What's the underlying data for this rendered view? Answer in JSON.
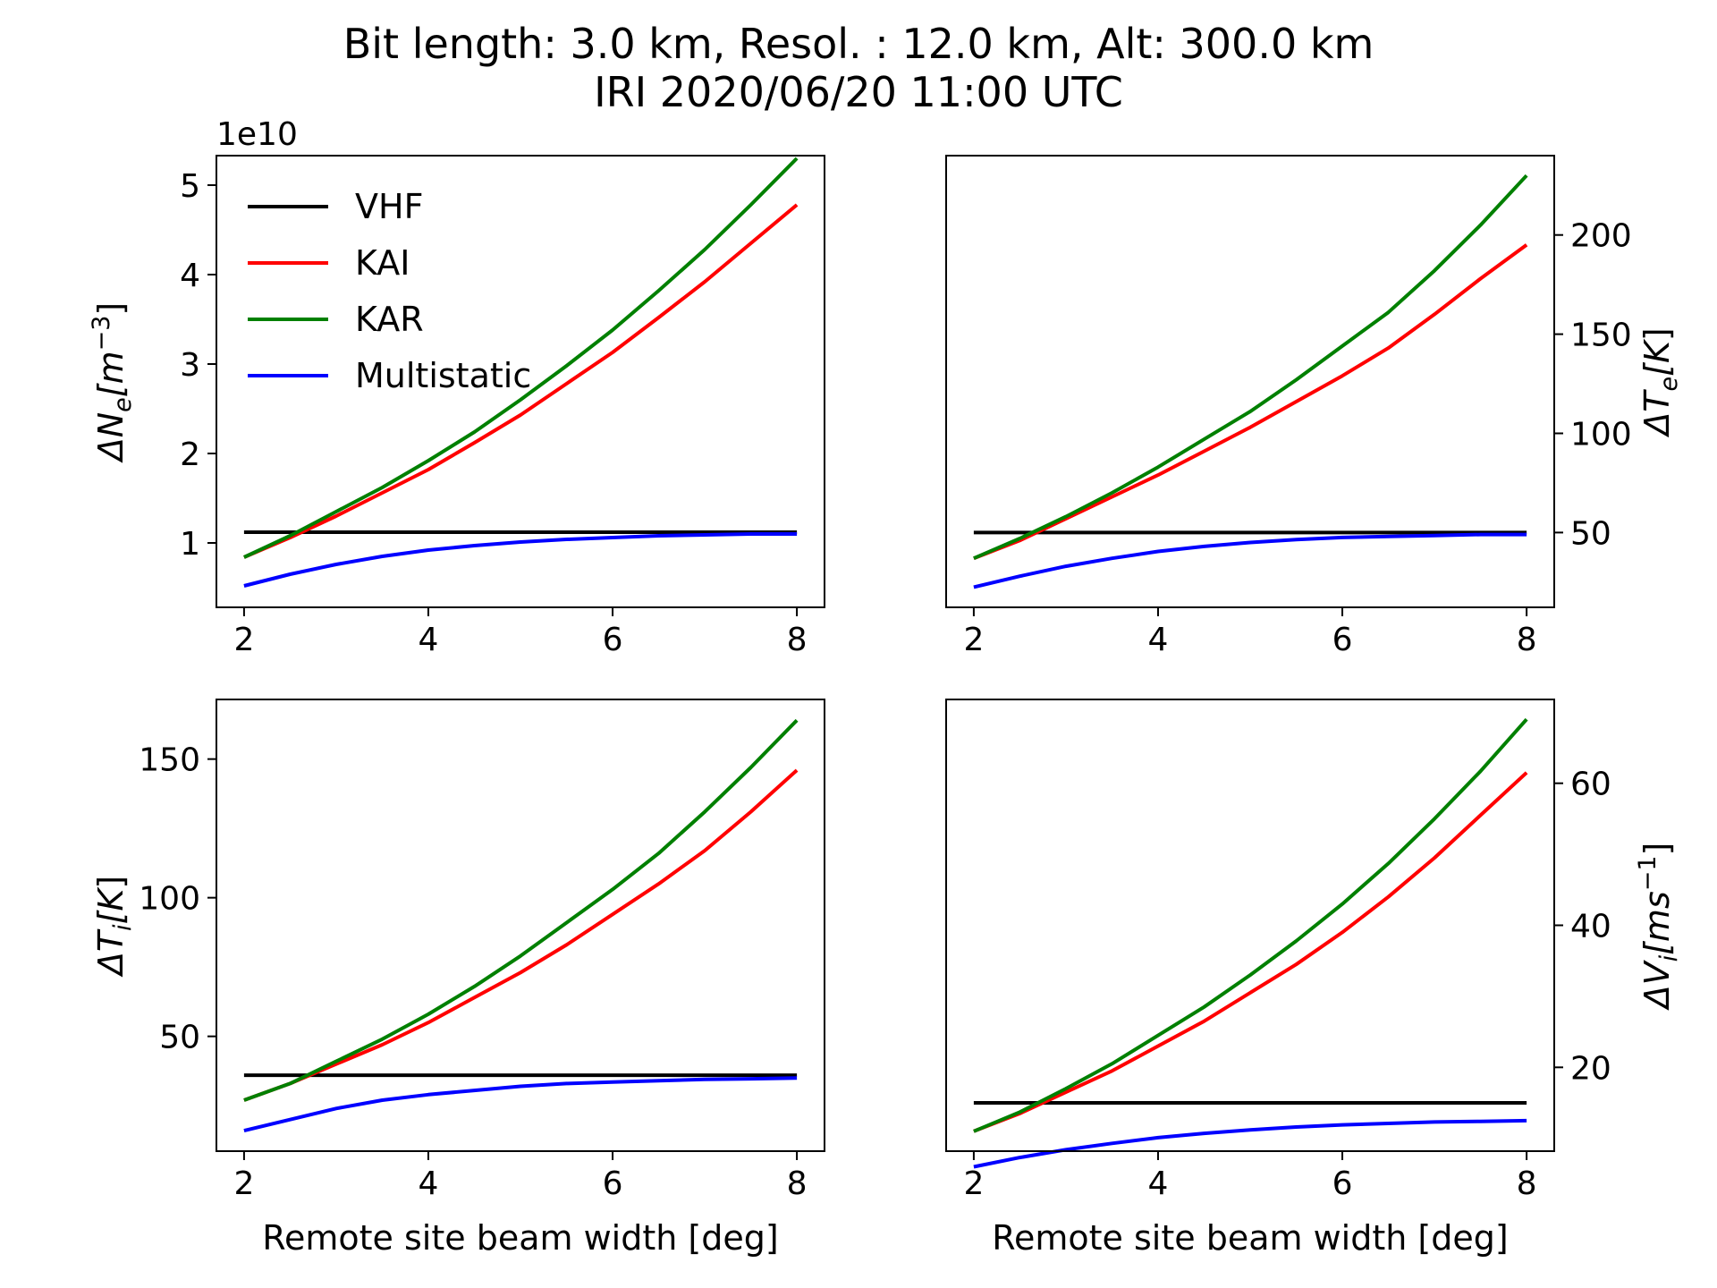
{
  "figure": {
    "title_line1": "Bit length: 3.0 km, Resol. : 12.0 km, Alt: 300.0 km",
    "title_line2": "IRI 2020/06/20 11:00 UTC"
  },
  "legend": {
    "placement": "upper-left of top-left panel",
    "entries": [
      {
        "label": "VHF",
        "color": "#000000"
      },
      {
        "label": "KAI",
        "color": "#ff0000"
      },
      {
        "label": "KAR",
        "color": "#008000"
      },
      {
        "label": "Multistatic",
        "color": "#0000ff"
      }
    ]
  },
  "chart_data": [
    {
      "type": "line",
      "panel": "top-left",
      "ylabel_base": "ΔN",
      "ylabel_sub": "e",
      "ylabel_unit_open": "[m",
      "ylabel_unit_sup": "−3",
      "ylabel_unit_close": "]",
      "y_offset_text": "1e10",
      "xlabel": "",
      "xlim": [
        1.7,
        8.3
      ],
      "ylim": [
        0.28,
        5.33
      ],
      "xticks": [
        "2",
        "4",
        "6",
        "8"
      ],
      "yticks": [
        "1",
        "2",
        "3",
        "4",
        "5"
      ],
      "yaxis_side": "left",
      "x": [
        2,
        2.5,
        3,
        3.5,
        4,
        4.5,
        5,
        5.5,
        6,
        6.5,
        7,
        7.5,
        8
      ],
      "series": [
        {
          "name": "VHF",
          "color": "#000000",
          "values": [
            1.12,
            1.12,
            1.12,
            1.12,
            1.12,
            1.12,
            1.12,
            1.12,
            1.12,
            1.12,
            1.12,
            1.12,
            1.12
          ]
        },
        {
          "name": "KAI",
          "color": "#ff0000",
          "values": [
            0.84,
            1.06,
            1.3,
            1.56,
            1.82,
            2.12,
            2.43,
            2.78,
            3.13,
            3.52,
            3.92,
            4.35,
            4.78
          ]
        },
        {
          "name": "KAR",
          "color": "#008000",
          "values": [
            0.84,
            1.08,
            1.35,
            1.62,
            1.92,
            2.24,
            2.6,
            2.98,
            3.38,
            3.82,
            4.28,
            4.78,
            5.3
          ]
        },
        {
          "name": "Multistatic",
          "color": "#0000ff",
          "values": [
            0.52,
            0.65,
            0.76,
            0.85,
            0.92,
            0.97,
            1.01,
            1.04,
            1.06,
            1.08,
            1.09,
            1.1,
            1.1
          ]
        }
      ]
    },
    {
      "type": "line",
      "panel": "top-right",
      "ylabel_base": "ΔT",
      "ylabel_sub": "e",
      "ylabel_unit_open": "[K",
      "ylabel_unit_sup": "",
      "ylabel_unit_close": "]",
      "y_offset_text": "",
      "xlabel": "",
      "xlim": [
        1.7,
        8.3
      ],
      "ylim": [
        12.3,
        240
      ],
      "xticks": [
        "2",
        "4",
        "6",
        "8"
      ],
      "yticks": [
        "50",
        "100",
        "150",
        "200"
      ],
      "yaxis_side": "right",
      "x": [
        2,
        2.5,
        3,
        3.5,
        4,
        4.5,
        5,
        5.5,
        6,
        6.5,
        7,
        7.5,
        8
      ],
      "series": [
        {
          "name": "VHF",
          "color": "#000000",
          "values": [
            50,
            50,
            50,
            50,
            50,
            50,
            50,
            50,
            50,
            50,
            50,
            50,
            50
          ]
        },
        {
          "name": "KAI",
          "color": "#ff0000",
          "values": [
            37,
            46,
            57,
            68,
            79,
            91,
            103,
            116,
            129,
            143,
            160,
            178,
            195
          ]
        },
        {
          "name": "KAR",
          "color": "#008000",
          "values": [
            37,
            47,
            58,
            70,
            83,
            97,
            111,
            127,
            144,
            161,
            182,
            205,
            230
          ]
        },
        {
          "name": "Multistatic",
          "color": "#0000ff",
          "values": [
            22.5,
            28,
            33,
            37,
            40.5,
            43,
            45,
            46.5,
            47.5,
            48,
            48.5,
            49,
            49
          ]
        }
      ]
    },
    {
      "type": "line",
      "panel": "bottom-left",
      "ylabel_base": "ΔT",
      "ylabel_sub": "i",
      "ylabel_unit_open": "[K",
      "ylabel_unit_sup": "",
      "ylabel_unit_close": "]",
      "y_offset_text": "",
      "xlabel": "Remote site beam width [deg]",
      "xlim": [
        1.7,
        8.3
      ],
      "ylim": [
        8.6,
        171.5
      ],
      "xticks": [
        "2",
        "4",
        "6",
        "8"
      ],
      "yticks": [
        "50",
        "100",
        "150"
      ],
      "yaxis_side": "left",
      "x": [
        2,
        2.5,
        3,
        3.5,
        4,
        4.5,
        5,
        5.5,
        6,
        6.5,
        7,
        7.5,
        8
      ],
      "series": [
        {
          "name": "VHF",
          "color": "#000000",
          "values": [
            36,
            36,
            36,
            36,
            36,
            36,
            36,
            36,
            36,
            36,
            36,
            36,
            36
          ]
        },
        {
          "name": "KAI",
          "color": "#ff0000",
          "values": [
            27,
            33,
            40,
            47,
            55,
            64,
            73,
            83,
            94,
            105,
            117,
            131,
            146
          ]
        },
        {
          "name": "KAR",
          "color": "#008000",
          "values": [
            27,
            33,
            41,
            49,
            58,
            68,
            79,
            91,
            103,
            116,
            131,
            147,
            164
          ]
        },
        {
          "name": "Multistatic",
          "color": "#0000ff",
          "values": [
            16,
            20,
            24,
            27,
            29,
            30.5,
            32,
            33,
            33.5,
            34,
            34.5,
            34.7,
            35
          ]
        }
      ]
    },
    {
      "type": "line",
      "panel": "bottom-right",
      "ylabel_base": "ΔV",
      "ylabel_sub": "i",
      "ylabel_unit_open": "[ms",
      "ylabel_unit_sup": "−1",
      "ylabel_unit_close": "]",
      "y_offset_text": "",
      "xlabel": "Remote site beam width [deg]",
      "xlim": [
        1.7,
        8.3
      ],
      "ylim": [
        8.2,
        71.8
      ],
      "xticks": [
        "2",
        "4",
        "6",
        "8"
      ],
      "yticks": [
        "20",
        "40",
        "60"
      ],
      "yaxis_side": "right",
      "x": [
        2,
        2.5,
        3,
        3.5,
        4,
        4.5,
        5,
        5.5,
        6,
        6.5,
        7,
        7.5,
        8
      ],
      "series": [
        {
          "name": "VHF",
          "color": "#000000",
          "values": [
            15,
            15,
            15,
            15,
            15,
            15,
            15,
            15,
            15,
            15,
            15,
            15,
            15
          ]
        },
        {
          "name": "KAI",
          "color": "#ff0000",
          "values": [
            11,
            13.5,
            16.5,
            19.5,
            23,
            26.5,
            30.5,
            34.5,
            39,
            44,
            49.5,
            55.5,
            61.5
          ]
        },
        {
          "name": "KAR",
          "color": "#008000",
          "values": [
            11,
            13.7,
            17,
            20.5,
            24.5,
            28.5,
            33,
            37.8,
            43,
            48.7,
            55,
            61.7,
            69
          ]
        },
        {
          "name": "Multistatic",
          "color": "#0000ff",
          "values": [
            6,
            7.3,
            8.4,
            9.3,
            10.1,
            10.7,
            11.2,
            11.6,
            11.9,
            12.1,
            12.3,
            12.4,
            12.5
          ]
        }
      ]
    }
  ]
}
